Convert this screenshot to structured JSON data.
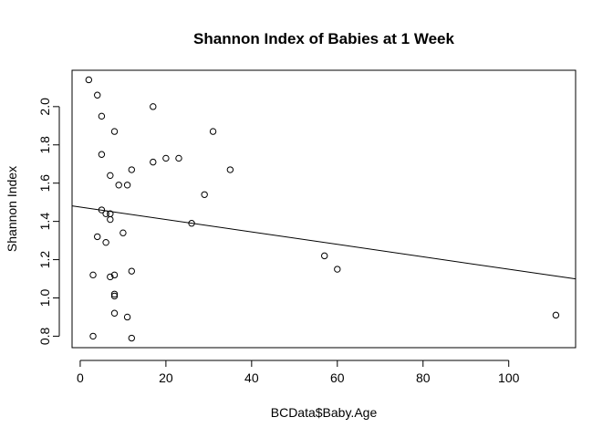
{
  "chart_data": {
    "type": "scatter",
    "title": "Shannon Index of Babies at 1 Week",
    "xlabel": "BCData$Baby.Age",
    "ylabel": "Shannon Index",
    "xlim": [
      -1.9,
      115.6
    ],
    "ylim": [
      0.74,
      2.19
    ],
    "xticks": [
      0,
      20,
      40,
      60,
      80,
      100
    ],
    "xtick_labels": [
      "0",
      "20",
      "40",
      "60",
      "80",
      "100"
    ],
    "yticks": [
      0.8,
      1.0,
      1.2,
      1.4,
      1.6,
      1.8,
      2.0
    ],
    "ytick_labels": [
      "0.8",
      "1.0",
      "1.2",
      "1.4",
      "1.6",
      "1.8",
      "2.0"
    ],
    "grid": false,
    "legend": "none",
    "points": [
      {
        "x": 2,
        "y": 2.14
      },
      {
        "x": 4,
        "y": 2.06
      },
      {
        "x": 5,
        "y": 1.95
      },
      {
        "x": 8,
        "y": 1.87
      },
      {
        "x": 17,
        "y": 2.0
      },
      {
        "x": 31,
        "y": 1.87
      },
      {
        "x": 5,
        "y": 1.75
      },
      {
        "x": 20,
        "y": 1.73
      },
      {
        "x": 23,
        "y": 1.73
      },
      {
        "x": 17,
        "y": 1.71
      },
      {
        "x": 12,
        "y": 1.67
      },
      {
        "x": 35,
        "y": 1.67
      },
      {
        "x": 7,
        "y": 1.64
      },
      {
        "x": 9,
        "y": 1.59
      },
      {
        "x": 11,
        "y": 1.59
      },
      {
        "x": 29,
        "y": 1.54
      },
      {
        "x": 5,
        "y": 1.46
      },
      {
        "x": 6,
        "y": 1.44
      },
      {
        "x": 7,
        "y": 1.44
      },
      {
        "x": 7,
        "y": 1.41
      },
      {
        "x": 26,
        "y": 1.39
      },
      {
        "x": 10,
        "y": 1.34
      },
      {
        "x": 4,
        "y": 1.32
      },
      {
        "x": 6,
        "y": 1.29
      },
      {
        "x": 57,
        "y": 1.22
      },
      {
        "x": 60,
        "y": 1.15
      },
      {
        "x": 12,
        "y": 1.14
      },
      {
        "x": 3,
        "y": 1.12
      },
      {
        "x": 8,
        "y": 1.12
      },
      {
        "x": 7,
        "y": 1.11
      },
      {
        "x": 8,
        "y": 1.02
      },
      {
        "x": 8,
        "y": 1.01
      },
      {
        "x": 8,
        "y": 0.92
      },
      {
        "x": 11,
        "y": 0.9
      },
      {
        "x": 111,
        "y": 0.91
      },
      {
        "x": 3,
        "y": 0.8
      },
      {
        "x": 12,
        "y": 0.79
      }
    ],
    "regression_line": {
      "intercept": 1.475,
      "slope": -0.00325
    }
  }
}
